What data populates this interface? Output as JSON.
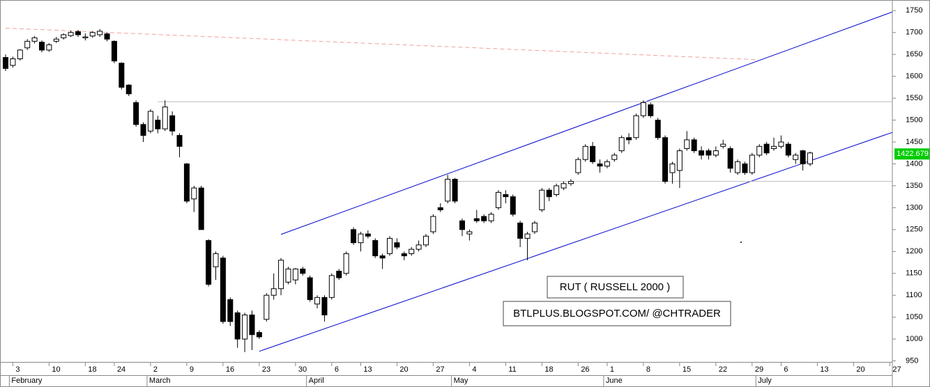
{
  "chart_data": {
    "type": "candlestick",
    "open": [
      1643,
      1625,
      1640,
      1665,
      1680,
      1678,
      1660,
      1680,
      1688,
      1693,
      1702,
      1688,
      1692,
      1695,
      1697,
      1680,
      1630,
      1580,
      1540,
      1490,
      1475,
      1500,
      1480,
      1510,
      1465,
      1400,
      1320,
      1345,
      1225,
      1165,
      1185,
      1090,
      1060,
      1000,
      1055,
      1015,
      1045,
      1100,
      1115,
      1130,
      1135,
      1160,
      1140,
      1080,
      1095,
      1095,
      1155,
      1150,
      1250,
      1220,
      1240,
      1225,
      1190,
      1195,
      1220,
      1195,
      1195,
      1205,
      1215,
      1245,
      1300,
      1315,
      1365,
      1270,
      1240,
      1275,
      1280,
      1270,
      1300,
      1330,
      1325,
      1265,
      1230,
      1245,
      1295,
      1340,
      1330,
      1345,
      1355,
      1380,
      1410,
      1440,
      1400,
      1395,
      1410,
      1430,
      1460,
      1460,
      1510,
      1535,
      1500,
      1460,
      1380,
      1385,
      1435,
      1455,
      1430,
      1430,
      1420,
      1440,
      1435,
      1380,
      1400,
      1380,
      1420,
      1445,
      1435,
      1440,
      1445,
      1410,
      1430,
      1400
    ],
    "high": [
      1650,
      1645,
      1662,
      1685,
      1692,
      1682,
      1676,
      1690,
      1698,
      1704,
      1706,
      1698,
      1703,
      1708,
      1700,
      1682,
      1632,
      1582,
      1545,
      1495,
      1525,
      1510,
      1545,
      1520,
      1470,
      1402,
      1350,
      1350,
      1228,
      1200,
      1190,
      1095,
      1065,
      1060,
      1065,
      1020,
      1105,
      1150,
      1185,
      1165,
      1162,
      1165,
      1145,
      1100,
      1100,
      1150,
      1160,
      1200,
      1255,
      1245,
      1248,
      1230,
      1195,
      1235,
      1230,
      1200,
      1210,
      1225,
      1240,
      1285,
      1310,
      1375,
      1368,
      1275,
      1250,
      1295,
      1285,
      1290,
      1340,
      1340,
      1330,
      1270,
      1245,
      1270,
      1345,
      1345,
      1355,
      1360,
      1365,
      1415,
      1445,
      1450,
      1410,
      1410,
      1425,
      1465,
      1470,
      1515,
      1545,
      1540,
      1505,
      1465,
      1405,
      1435,
      1475,
      1460,
      1440,
      1435,
      1440,
      1455,
      1440,
      1410,
      1405,
      1425,
      1445,
      1450,
      1460,
      1465,
      1450,
      1425,
      1432,
      1428
    ],
    "low": [
      1612,
      1620,
      1636,
      1660,
      1675,
      1655,
      1656,
      1676,
      1684,
      1690,
      1690,
      1682,
      1688,
      1690,
      1680,
      1630,
      1570,
      1555,
      1485,
      1450,
      1470,
      1470,
      1475,
      1465,
      1415,
      1310,
      1290,
      1250,
      1120,
      1135,
      1035,
      1030,
      980,
      970,
      975,
      1000,
      1040,
      1090,
      1100,
      1125,
      1125,
      1145,
      1085,
      1070,
      1040,
      1090,
      1135,
      1145,
      1215,
      1200,
      1230,
      1185,
      1160,
      1190,
      1205,
      1180,
      1190,
      1200,
      1210,
      1240,
      1290,
      1310,
      1310,
      1235,
      1225,
      1265,
      1265,
      1265,
      1295,
      1310,
      1280,
      1210,
      1180,
      1240,
      1290,
      1315,
      1325,
      1340,
      1350,
      1375,
      1405,
      1400,
      1380,
      1390,
      1405,
      1425,
      1445,
      1455,
      1505,
      1505,
      1455,
      1355,
      1355,
      1345,
      1430,
      1425,
      1410,
      1410,
      1415,
      1435,
      1380,
      1375,
      1375,
      1375,
      1415,
      1420,
      1430,
      1435,
      1415,
      1400,
      1385,
      1395
    ],
    "close": [
      1618,
      1640,
      1660,
      1680,
      1688,
      1660,
      1672,
      1685,
      1695,
      1700,
      1695,
      1690,
      1700,
      1703,
      1685,
      1635,
      1575,
      1560,
      1490,
      1465,
      1520,
      1480,
      1530,
      1475,
      1440,
      1315,
      1345,
      1250,
      1125,
      1195,
      1040,
      1040,
      1000,
      1055,
      1010,
      1005,
      1100,
      1115,
      1180,
      1160,
      1160,
      1150,
      1090,
      1095,
      1055,
      1145,
      1140,
      1195,
      1220,
      1240,
      1235,
      1190,
      1185,
      1230,
      1210,
      1190,
      1205,
      1215,
      1235,
      1280,
      1295,
      1365,
      1315,
      1250,
      1245,
      1270,
      1270,
      1285,
      1335,
      1325,
      1285,
      1230,
      1240,
      1265,
      1340,
      1325,
      1350,
      1355,
      1360,
      1410,
      1440,
      1405,
      1395,
      1405,
      1420,
      1460,
      1455,
      1510,
      1540,
      1510,
      1460,
      1360,
      1400,
      1430,
      1455,
      1430,
      1420,
      1420,
      1430,
      1445,
      1390,
      1405,
      1380,
      1420,
      1440,
      1425,
      1440,
      1450,
      1420,
      1420,
      1400,
      1425
    ],
    "xlim": [
      -0.77,
      122.35
    ],
    "xticks": [
      {
        "value": 1,
        "label": "3"
      },
      {
        "value": 6,
        "label": "10"
      },
      {
        "value": 11,
        "label": "18"
      },
      {
        "value": 15,
        "label": "24"
      },
      {
        "value": 20,
        "label": "2"
      },
      {
        "value": 25,
        "label": "9"
      },
      {
        "value": 30,
        "label": "16"
      },
      {
        "value": 35,
        "label": "23"
      },
      {
        "value": 40,
        "label": "30"
      },
      {
        "value": 45,
        "label": "6"
      },
      {
        "value": 49,
        "label": "13"
      },
      {
        "value": 54,
        "label": "20"
      },
      {
        "value": 59,
        "label": "27"
      },
      {
        "value": 64,
        "label": "4"
      },
      {
        "value": 69,
        "label": "11"
      },
      {
        "value": 74,
        "label": "18"
      },
      {
        "value": 79,
        "label": "26"
      },
      {
        "value": 83,
        "label": "1"
      },
      {
        "value": 88,
        "label": "8"
      },
      {
        "value": 93,
        "label": "15"
      },
      {
        "value": 98,
        "label": "22"
      },
      {
        "value": 103,
        "label": "29"
      },
      {
        "value": 107,
        "label": "6"
      },
      {
        "value": 112,
        "label": "13"
      },
      {
        "value": 117,
        "label": "20"
      },
      {
        "value": 122,
        "label": "27"
      }
    ],
    "months": [
      {
        "value": 1,
        "label": "February"
      },
      {
        "value": 20,
        "label": "March"
      },
      {
        "value": 42,
        "label": "April"
      },
      {
        "value": 62,
        "label": "May"
      },
      {
        "value": 83,
        "label": "June"
      },
      {
        "value": 104,
        "label": "July"
      }
    ],
    "ylim": [
      947.7,
      1774.3
    ],
    "yticks": [
      950,
      1000,
      1050,
      1100,
      1150,
      1200,
      1250,
      1300,
      1350,
      1400,
      1450,
      1500,
      1550,
      1600,
      1650,
      1700,
      1750
    ],
    "last_price": 1422.679,
    "last_price_color": "#00cc00",
    "trendlines": [
      {
        "x": [
          38,
          122.35
        ],
        "y": [
          1239,
          1747
        ],
        "color": "#0000cc"
      },
      {
        "x": [
          35,
          122.35
        ],
        "y": [
          972,
          1472
        ],
        "color": "#0000cc"
      },
      {
        "x": [
          0,
          103.8
        ],
        "y": [
          1710,
          1638
        ],
        "color": "#f0a0a0",
        "dashed": true
      },
      {
        "x": [
          21,
          122.35
        ],
        "y": [
          1542,
          1542
        ],
        "color": "#bbbbbb"
      },
      {
        "x": [
          60.5,
          122.35
        ],
        "y": [
          1360,
          1360
        ],
        "color": "#bbbbbb"
      }
    ],
    "annotations": [
      "RUT ( RUSSELL 2000 )",
      "BTLPLUS.BLOGSPOT.COM/ @CHTRADER"
    ]
  }
}
